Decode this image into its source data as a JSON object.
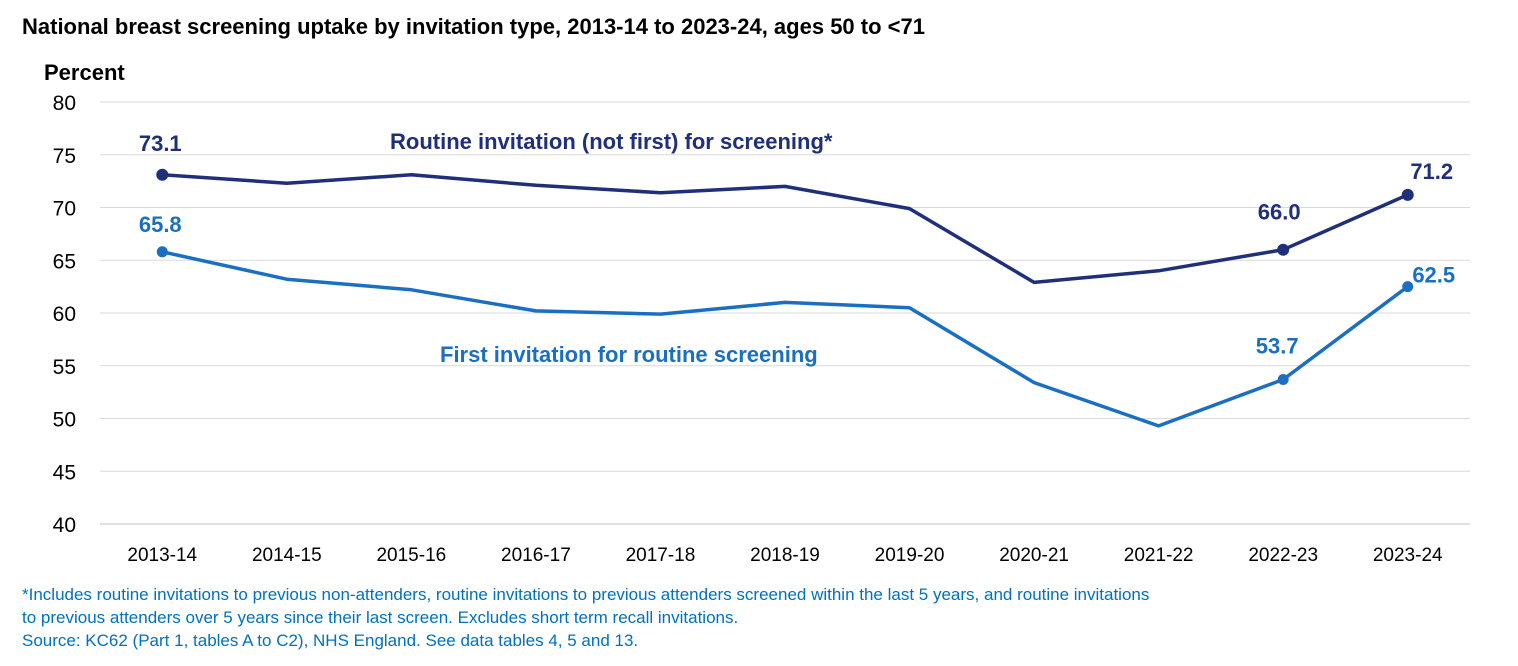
{
  "chart_data": {
    "type": "line",
    "title": "National breast screening uptake by invitation type, 2013-14 to 2023-24, ages 50 to <71",
    "ylabel": "Percent",
    "xlabel": "",
    "ylim": [
      40,
      80
    ],
    "yticks": [
      40,
      45,
      50,
      55,
      60,
      65,
      70,
      75,
      80
    ],
    "grid": true,
    "categories": [
      "2013-14",
      "2014-15",
      "2015-16",
      "2016-17",
      "2017-18",
      "2018-19",
      "2019-20",
      "2020-21",
      "2021-22",
      "2022-23",
      "2023-24"
    ],
    "series": [
      {
        "name": "Routine invitation (not first) for screening*",
        "color": "#1f2f7a",
        "values": [
          73.1,
          72.3,
          73.1,
          72.1,
          71.4,
          72.0,
          69.9,
          62.9,
          64.0,
          66.0,
          71.2
        ],
        "markers": [
          0,
          9,
          10
        ],
        "labels": {
          "0": "73.1",
          "9": "66.0",
          "10": "71.2"
        }
      },
      {
        "name": "First invitation for routine screening",
        "color": "#1a6fc2",
        "values": [
          65.8,
          63.2,
          62.2,
          60.2,
          59.9,
          61.0,
          60.5,
          53.4,
          49.3,
          53.7,
          62.5
        ],
        "markers": [
          0,
          9,
          10
        ],
        "labels": {
          "0": "65.8",
          "9": "53.7",
          "10": "62.5"
        }
      }
    ]
  },
  "footnote": {
    "line1": "*Includes routine invitations to previous non-attenders, routine invitations to previous attenders screened within the last 5 years, and routine invitations",
    "line2": "to previous attenders over 5 years since their last screen. Excludes short term recall invitations.",
    "line3": "Source: KC62 (Part 1, tables A to C2), NHS England. See data tables 4, 5 and 13."
  }
}
